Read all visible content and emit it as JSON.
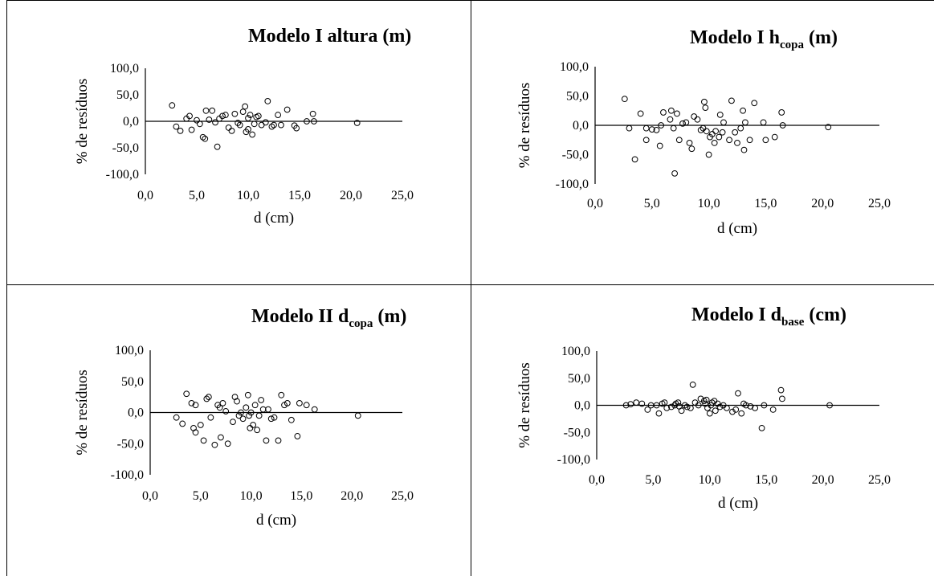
{
  "chart_data": [
    {
      "type": "scatter",
      "title": "Modelo I altura (m)",
      "title_parts": {
        "pre": "Modelo I altura (m)",
        "sub": "",
        "post": ""
      },
      "xlabel": "d (cm)",
      "ylabel": "% de resíduos",
      "xlim": [
        0,
        25
      ],
      "ylim": [
        -100,
        100
      ],
      "xticks": [
        0,
        5,
        10,
        15,
        20,
        25
      ],
      "yticks": [
        100,
        50,
        0,
        -50,
        -100
      ],
      "xtick_labels": [
        "0,0",
        "5,0",
        "10,0",
        "15,0",
        "20,0",
        "25,0"
      ],
      "ytick_labels": [
        "100,0",
        "50,0",
        "0,0",
        "-50,0",
        "-100,0"
      ],
      "grid": false,
      "zero_line": true,
      "points": [
        [
          2.6,
          30
        ],
        [
          3.0,
          -10
        ],
        [
          3.4,
          -18
        ],
        [
          4.0,
          5
        ],
        [
          4.3,
          10
        ],
        [
          4.5,
          -16
        ],
        [
          5.0,
          2
        ],
        [
          5.3,
          -5
        ],
        [
          5.6,
          -30
        ],
        [
          5.8,
          -33
        ],
        [
          5.9,
          20
        ],
        [
          6.2,
          3
        ],
        [
          6.5,
          20
        ],
        [
          6.8,
          -2
        ],
        [
          7.0,
          -48
        ],
        [
          7.2,
          5
        ],
        [
          7.5,
          10
        ],
        [
          7.8,
          12
        ],
        [
          8.1,
          -12
        ],
        [
          8.4,
          -18
        ],
        [
          8.7,
          14
        ],
        [
          9.0,
          -3
        ],
        [
          9.2,
          -7
        ],
        [
          9.5,
          18
        ],
        [
          9.7,
          28
        ],
        [
          9.8,
          -20
        ],
        [
          10.0,
          -15
        ],
        [
          10.0,
          6
        ],
        [
          10.2,
          12
        ],
        [
          10.4,
          -25
        ],
        [
          10.6,
          -5
        ],
        [
          10.8,
          8
        ],
        [
          11.0,
          10
        ],
        [
          11.3,
          -7
        ],
        [
          11.7,
          -2
        ],
        [
          11.9,
          38
        ],
        [
          12.3,
          -10
        ],
        [
          12.5,
          -7
        ],
        [
          12.9,
          12
        ],
        [
          13.2,
          -7
        ],
        [
          13.8,
          22
        ],
        [
          14.5,
          -8
        ],
        [
          14.7,
          -13
        ],
        [
          15.7,
          0
        ],
        [
          16.3,
          14
        ],
        [
          16.4,
          0
        ],
        [
          20.6,
          -3
        ]
      ]
    },
    {
      "type": "scatter",
      "title": "Modelo I hcopa (m)",
      "title_parts": {
        "pre": "Modelo I h",
        "sub": "copa",
        "post": " (m)"
      },
      "xlabel": "d (cm)",
      "ylabel": "% de resíduos",
      "xlim": [
        0,
        25
      ],
      "ylim": [
        -100,
        100
      ],
      "xticks": [
        0,
        5,
        10,
        15,
        20,
        25
      ],
      "yticks": [
        100,
        50,
        0,
        -50,
        -100
      ],
      "xtick_labels": [
        "0,0",
        "5,0",
        "10,0",
        "15,0",
        "20,0",
        "25,0"
      ],
      "ytick_labels": [
        "100,0",
        "50,0",
        "0,0",
        "-50,0",
        "-100,0"
      ],
      "grid": false,
      "zero_line": true,
      "points": [
        [
          2.6,
          45
        ],
        [
          3.0,
          -5
        ],
        [
          3.5,
          -58
        ],
        [
          4.0,
          20
        ],
        [
          4.5,
          -5
        ],
        [
          4.5,
          -25
        ],
        [
          5.0,
          -7
        ],
        [
          5.4,
          -8
        ],
        [
          5.7,
          -35
        ],
        [
          5.8,
          0
        ],
        [
          6.0,
          22
        ],
        [
          6.6,
          10
        ],
        [
          6.7,
          25
        ],
        [
          6.9,
          -5
        ],
        [
          7.0,
          -82
        ],
        [
          7.2,
          20
        ],
        [
          7.4,
          -25
        ],
        [
          7.7,
          3
        ],
        [
          8.0,
          5
        ],
        [
          8.3,
          -30
        ],
        [
          8.5,
          -40
        ],
        [
          8.7,
          15
        ],
        [
          9.0,
          10
        ],
        [
          9.3,
          -8
        ],
        [
          9.5,
          -5
        ],
        [
          9.6,
          40
        ],
        [
          9.7,
          30
        ],
        [
          9.8,
          -10
        ],
        [
          10.0,
          -50
        ],
        [
          10.1,
          -20
        ],
        [
          10.3,
          -15
        ],
        [
          10.5,
          -30
        ],
        [
          10.6,
          -10
        ],
        [
          10.9,
          -20
        ],
        [
          11.0,
          18
        ],
        [
          11.2,
          -12
        ],
        [
          11.3,
          5
        ],
        [
          11.8,
          -25
        ],
        [
          12.0,
          42
        ],
        [
          12.3,
          -12
        ],
        [
          12.5,
          -30
        ],
        [
          12.8,
          -5
        ],
        [
          13.0,
          25
        ],
        [
          13.1,
          -42
        ],
        [
          13.2,
          5
        ],
        [
          13.6,
          -25
        ],
        [
          14.0,
          38
        ],
        [
          14.8,
          5
        ],
        [
          15.0,
          -25
        ],
        [
          15.8,
          -20
        ],
        [
          16.4,
          22
        ],
        [
          16.5,
          0
        ],
        [
          20.5,
          -3
        ]
      ]
    },
    {
      "type": "scatter",
      "title": "Modelo II dcopa (m)",
      "title_parts": {
        "pre": "Modelo II d",
        "sub": "copa",
        "post": " (m)"
      },
      "xlabel": "d (cm)",
      "ylabel": "% de resíduos",
      "xlim": [
        0,
        25
      ],
      "ylim": [
        -100,
        100
      ],
      "xticks": [
        0,
        5,
        10,
        15,
        20,
        25
      ],
      "yticks": [
        100,
        50,
        0,
        -50,
        -100
      ],
      "xtick_labels": [
        "0,0",
        "5,0",
        "10,0",
        "15,0",
        "20,0",
        "25,0"
      ],
      "ytick_labels": [
        "100,0",
        "50,0",
        "0,0",
        "-50,0",
        "-100,0"
      ],
      "grid": false,
      "zero_line": true,
      "points": [
        [
          2.6,
          -8
        ],
        [
          3.2,
          -18
        ],
        [
          3.6,
          30
        ],
        [
          4.1,
          15
        ],
        [
          4.3,
          -25
        ],
        [
          4.5,
          -32
        ],
        [
          4.5,
          12
        ],
        [
          5.0,
          -20
        ],
        [
          5.3,
          -45
        ],
        [
          5.6,
          22
        ],
        [
          5.8,
          25
        ],
        [
          6.0,
          -8
        ],
        [
          6.4,
          -52
        ],
        [
          6.7,
          12
        ],
        [
          6.9,
          8
        ],
        [
          7.0,
          -40
        ],
        [
          7.2,
          15
        ],
        [
          7.5,
          2
        ],
        [
          7.7,
          -50
        ],
        [
          8.2,
          -15
        ],
        [
          8.4,
          25
        ],
        [
          8.6,
          18
        ],
        [
          8.8,
          -5
        ],
        [
          9.0,
          0
        ],
        [
          9.2,
          -10
        ],
        [
          9.5,
          8
        ],
        [
          9.7,
          28
        ],
        [
          9.8,
          -5
        ],
        [
          9.9,
          -25
        ],
        [
          10.0,
          0
        ],
        [
          10.2,
          -20
        ],
        [
          10.4,
          12
        ],
        [
          10.6,
          -28
        ],
        [
          10.8,
          -5
        ],
        [
          11.0,
          20
        ],
        [
          11.2,
          5
        ],
        [
          11.5,
          -45
        ],
        [
          11.7,
          5
        ],
        [
          12.0,
          -10
        ],
        [
          12.3,
          -8
        ],
        [
          12.7,
          -45
        ],
        [
          13.0,
          28
        ],
        [
          13.3,
          12
        ],
        [
          13.6,
          15
        ],
        [
          14.0,
          -12
        ],
        [
          14.6,
          -38
        ],
        [
          14.8,
          15
        ],
        [
          15.5,
          12
        ],
        [
          16.3,
          5
        ],
        [
          20.6,
          -5
        ]
      ]
    },
    {
      "type": "scatter",
      "title": "Modelo I dbase (cm)",
      "title_parts": {
        "pre": "Modelo I d",
        "sub": "base",
        "post": " (cm)"
      },
      "xlabel": "d (cm)",
      "ylabel": "% de resíduos",
      "xlim": [
        0,
        25
      ],
      "ylim": [
        -100,
        100
      ],
      "xticks": [
        0,
        5,
        10,
        15,
        20,
        25
      ],
      "yticks": [
        100,
        50,
        0,
        -50,
        -100
      ],
      "xtick_labels": [
        "0,0",
        "5,0",
        "10,0",
        "15,0",
        "20,0",
        "25,0"
      ],
      "ytick_labels": [
        "100,0",
        "50,0",
        "0,0",
        "-50,0",
        "-100,0"
      ],
      "grid": false,
      "zero_line": true,
      "points": [
        [
          2.6,
          0
        ],
        [
          3.0,
          2
        ],
        [
          3.5,
          5
        ],
        [
          4.0,
          3
        ],
        [
          4.5,
          -8
        ],
        [
          4.8,
          0
        ],
        [
          5.3,
          0
        ],
        [
          5.5,
          -15
        ],
        [
          5.8,
          3
        ],
        [
          6.0,
          5
        ],
        [
          6.2,
          -5
        ],
        [
          6.6,
          -3
        ],
        [
          6.9,
          0
        ],
        [
          7.0,
          3
        ],
        [
          7.2,
          5
        ],
        [
          7.3,
          -2
        ],
        [
          7.5,
          -10
        ],
        [
          7.8,
          0
        ],
        [
          8.0,
          -3
        ],
        [
          8.3,
          -5
        ],
        [
          8.5,
          38
        ],
        [
          8.7,
          5
        ],
        [
          9.0,
          0
        ],
        [
          9.2,
          12
        ],
        [
          9.5,
          8
        ],
        [
          9.6,
          3
        ],
        [
          9.7,
          10
        ],
        [
          9.8,
          -5
        ],
        [
          10.0,
          -15
        ],
        [
          10.1,
          0
        ],
        [
          10.2,
          5
        ],
        [
          10.4,
          8
        ],
        [
          10.5,
          -10
        ],
        [
          10.7,
          3
        ],
        [
          10.9,
          -3
        ],
        [
          11.2,
          0
        ],
        [
          11.5,
          -5
        ],
        [
          12.0,
          -12
        ],
        [
          12.3,
          -8
        ],
        [
          12.5,
          22
        ],
        [
          12.8,
          -15
        ],
        [
          13.0,
          3
        ],
        [
          13.2,
          0
        ],
        [
          13.6,
          -2
        ],
        [
          14.0,
          -5
        ],
        [
          14.6,
          -42
        ],
        [
          14.8,
          0
        ],
        [
          15.6,
          -8
        ],
        [
          16.3,
          28
        ],
        [
          16.4,
          12
        ],
        [
          20.6,
          0
        ]
      ]
    }
  ]
}
